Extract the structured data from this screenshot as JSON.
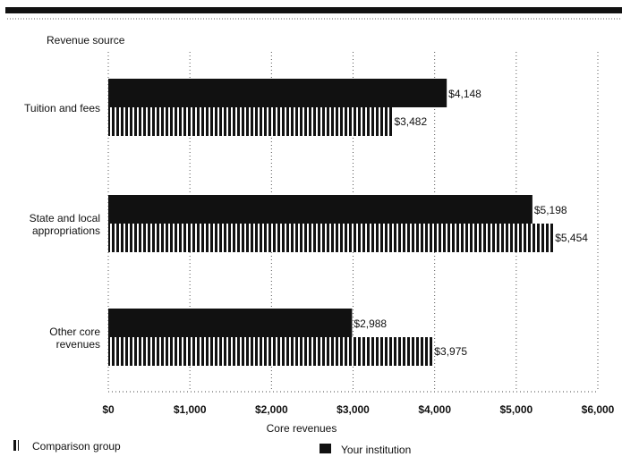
{
  "chart_data": {
    "type": "bar",
    "orientation": "horizontal",
    "title": "",
    "ylabel": "Revenue source",
    "xlabel": "Core revenues",
    "categories": [
      [
        "Tuition and fees"
      ],
      [
        "State and local",
        "appropriations"
      ],
      [
        "Other core",
        "revenues"
      ]
    ],
    "series": [
      {
        "name": "Your institution",
        "color": "#111111",
        "pattern": "solid",
        "values": [
          4148,
          5198,
          2988
        ],
        "labels": [
          "$4,148",
          "$5,198",
          "$2,988"
        ]
      },
      {
        "name": "Comparison group",
        "color": "#111111",
        "pattern": "vertical-stripes",
        "values": [
          3482,
          5454,
          3975
        ],
        "labels": [
          "$3,482",
          "$5,454",
          "$3,975"
        ]
      }
    ],
    "xlim": [
      0,
      6000
    ],
    "xticks": [
      0,
      1000,
      2000,
      3000,
      4000,
      5000,
      6000
    ],
    "xtick_labels": [
      "$0",
      "$1,000",
      "$2,000",
      "$3,000",
      "$4,000",
      "$5,000",
      "$6,000"
    ],
    "grid": "vertical-dotted",
    "legend": [
      {
        "label": "Comparison group",
        "pattern": "vertical-stripes"
      },
      {
        "label": "Your institution",
        "pattern": "solid"
      }
    ],
    "legend_position": "bottom"
  }
}
